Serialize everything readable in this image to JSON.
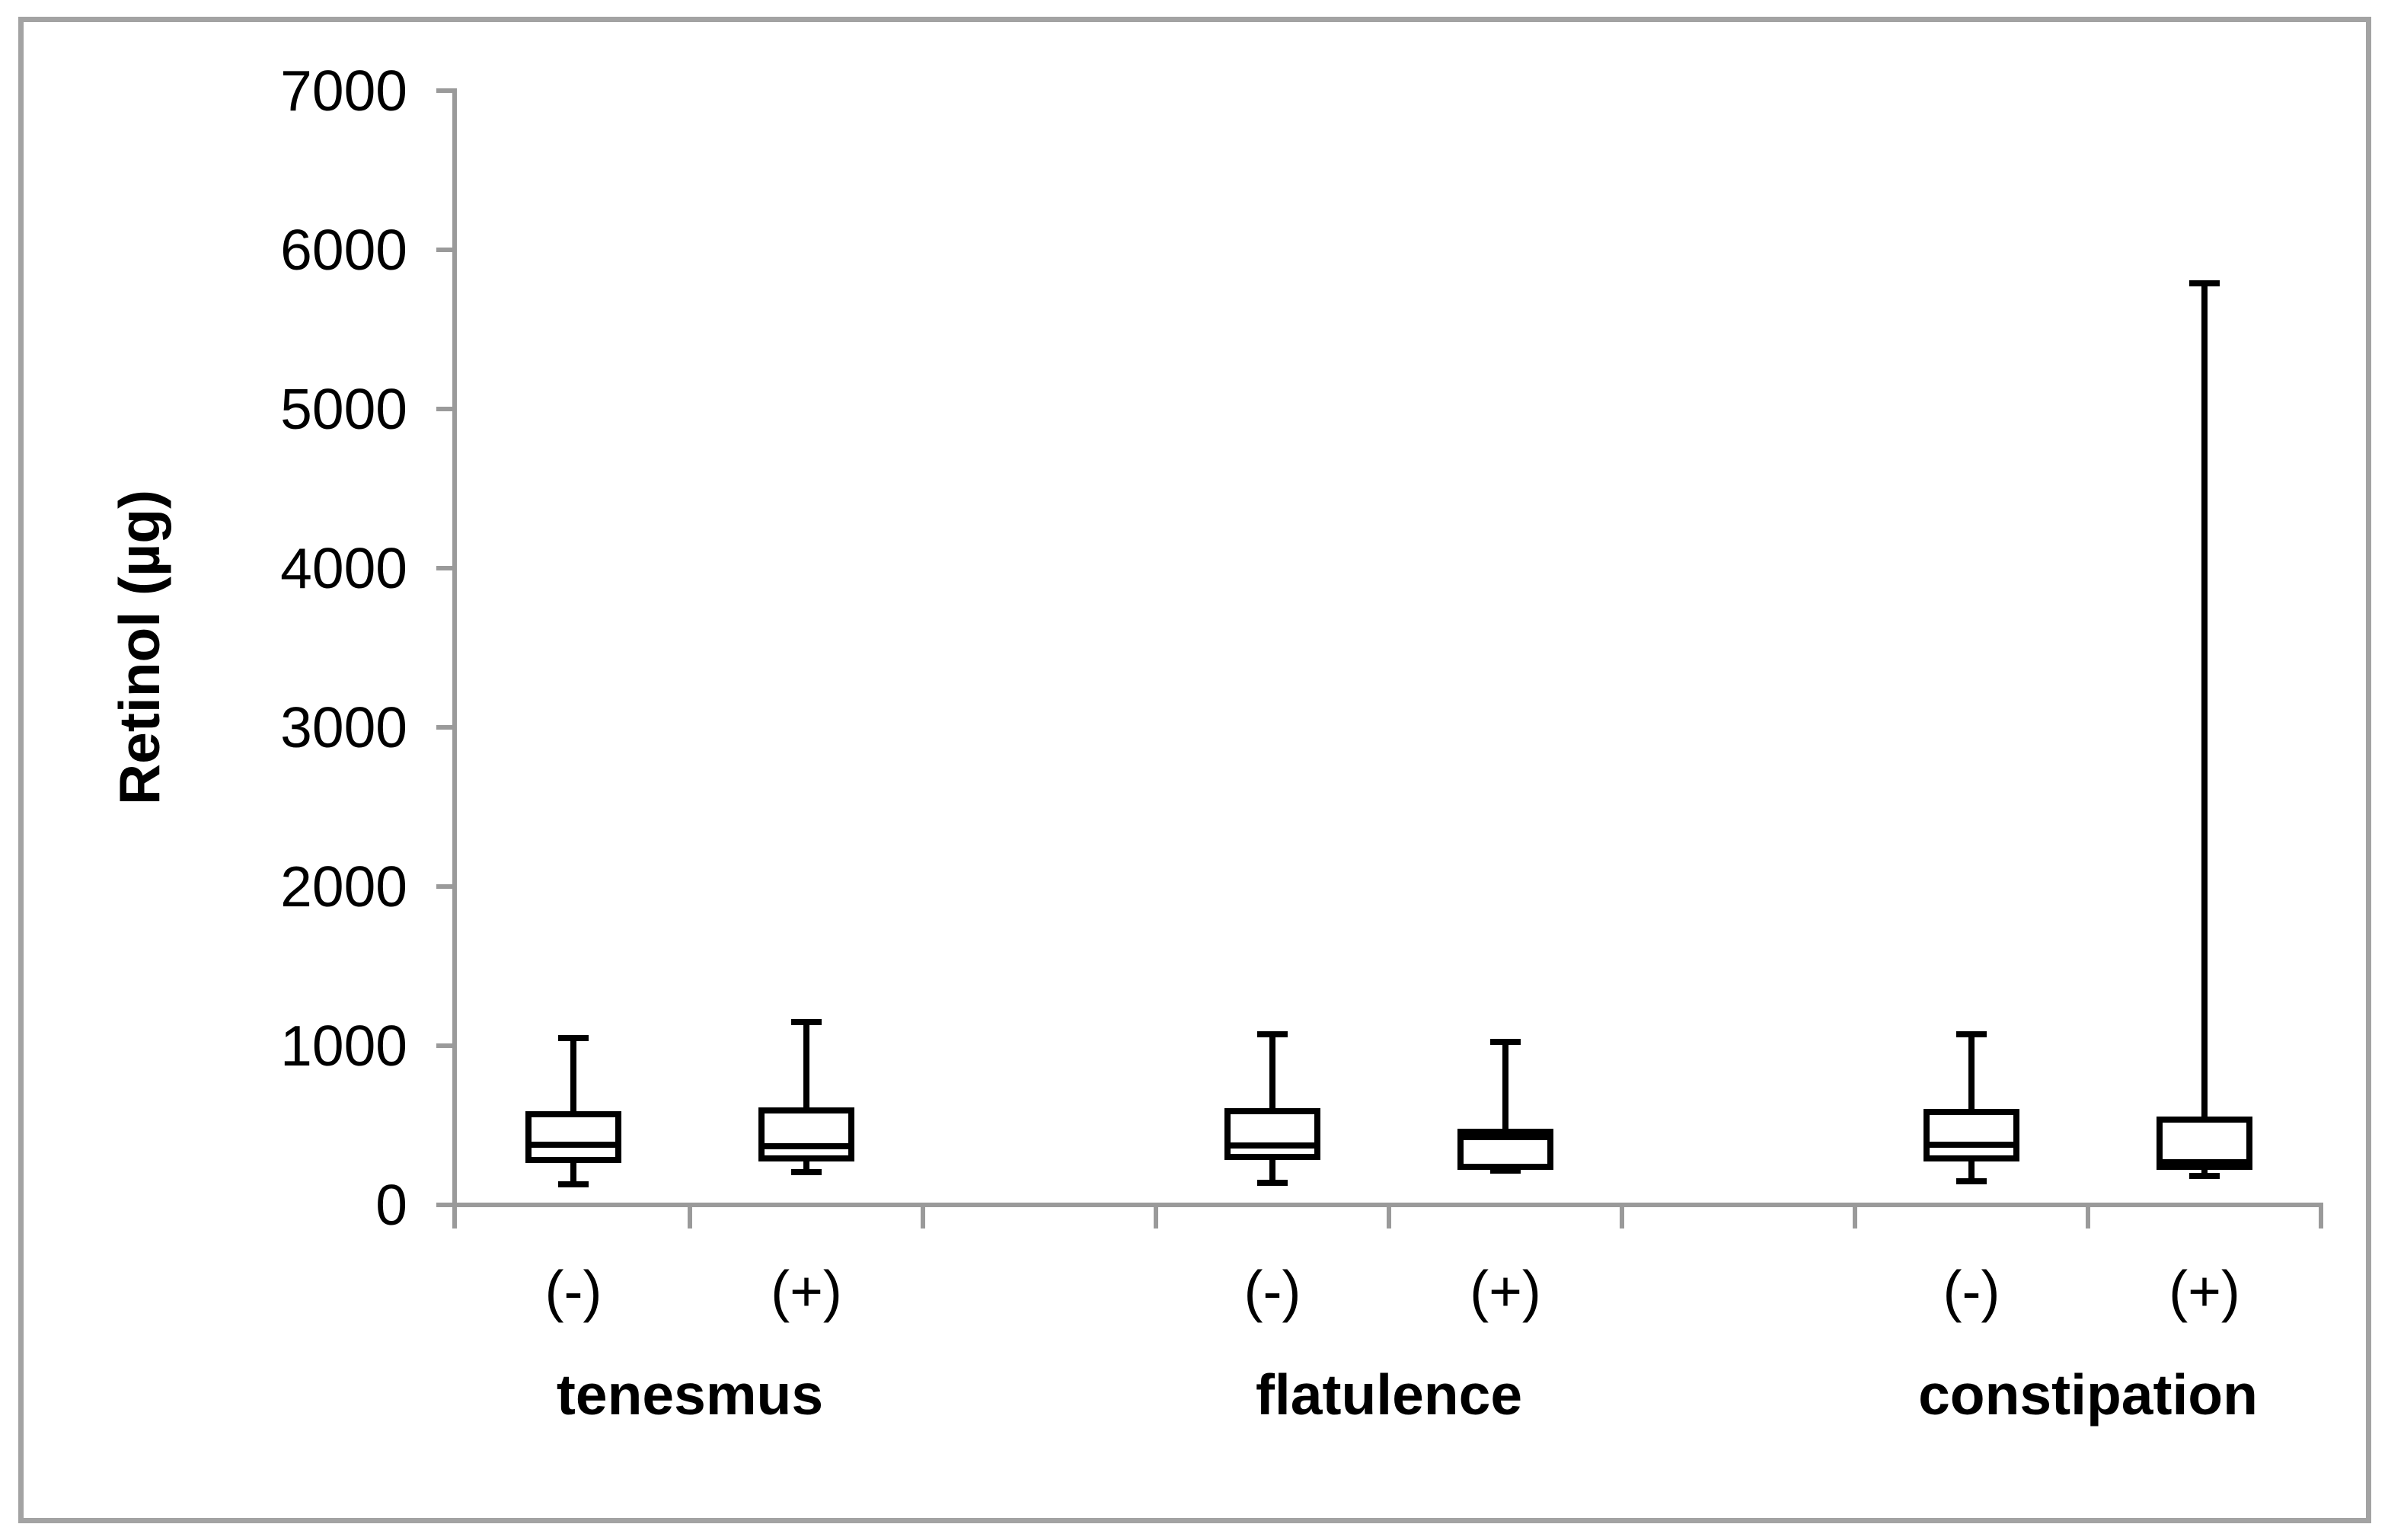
{
  "figure": {
    "background_color": "#ffffff",
    "frame_color": "#a3a3a3",
    "axis_color": "#9a9a9a",
    "box_line_color": "#000000"
  },
  "chart_data": {
    "type": "boxplot",
    "title": "",
    "xlabel": "",
    "ylabel": "Retinol (µg)",
    "grid": false,
    "legend": false,
    "y_axis": {
      "min": 0,
      "max": 7000,
      "tick_step": 1000,
      "tick_labels": [
        "0",
        "1000",
        "2000",
        "3000",
        "4000",
        "5000",
        "6000",
        "7000"
      ]
    },
    "groups": [
      {
        "label": "tenesmus",
        "boxes": [
          {
            "label": "(-)",
            "whisker_low": 130,
            "q1": 280,
            "median": 380,
            "q3": 570,
            "whisker_high": 1050
          },
          {
            "label": "(+)",
            "whisker_low": 205,
            "q1": 290,
            "median": 370,
            "q3": 595,
            "whisker_high": 1150
          }
        ]
      },
      {
        "label": "flatulence",
        "boxes": [
          {
            "label": "(-)",
            "whisker_low": 140,
            "q1": 300,
            "median": 375,
            "q3": 590,
            "whisker_high": 1070
          },
          {
            "label": "(+)",
            "whisker_low": 215,
            "q1": 240,
            "median": 425,
            "q3": 460,
            "whisker_high": 1025
          }
        ]
      },
      {
        "label": "constipation",
        "boxes": [
          {
            "label": "(-)",
            "whisker_low": 150,
            "q1": 290,
            "median": 380,
            "q3": 585,
            "whisker_high": 1070
          },
          {
            "label": "(+)",
            "whisker_low": 180,
            "q1": 240,
            "median": 270,
            "q3": 535,
            "whisker_high": 5790
          }
        ]
      }
    ]
  }
}
